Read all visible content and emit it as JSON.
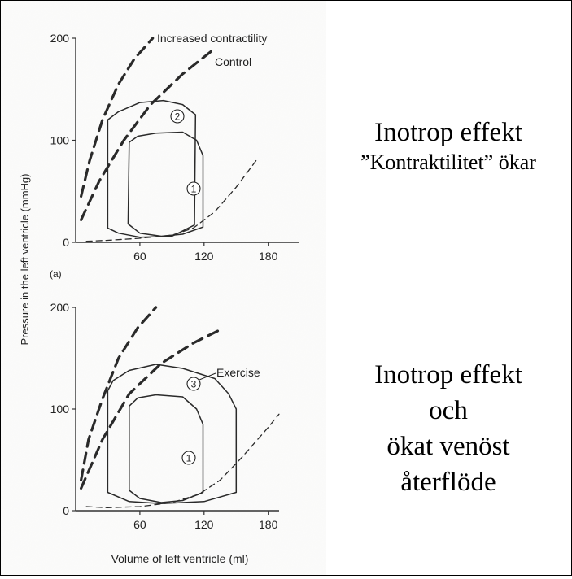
{
  "captions": {
    "top_line1": "Inotrop effekt",
    "top_line2": "”Kontraktilitet” ökar",
    "bottom_line1": "Inotrop effekt",
    "bottom_line2": "och",
    "bottom_line3": "ökat venöst",
    "bottom_line4": "återflöde"
  },
  "shared_labels": {
    "ylabel": "Pressure in the left ventricle (mmHg)",
    "xlabel": "Volume of left ventricle (ml)"
  },
  "colors": {
    "curves": "#2a2a2a",
    "axes": "#333333",
    "background": "#ffffff"
  },
  "chart_data": [
    {
      "type": "line",
      "panel_label": "(a)",
      "xlim": [
        0,
        200
      ],
      "ylim": [
        0,
        200
      ],
      "xticks": [
        60,
        120,
        180
      ],
      "yticks": [
        0,
        100,
        200
      ],
      "annotations": [
        {
          "text": "Increased contractility"
        },
        {
          "text": "Control"
        },
        {
          "text": "2"
        },
        {
          "text": "1"
        }
      ],
      "series": [
        {
          "id": "esp-increased",
          "style": "dashed-heavy",
          "points": [
            [
              5,
              45
            ],
            [
              13,
              80
            ],
            [
              25,
              120
            ],
            [
              40,
              155
            ],
            [
              55,
              180
            ],
            [
              72,
              200
            ]
          ]
        },
        {
          "id": "esp-control",
          "style": "dashed-heavy",
          "points": [
            [
              5,
              22
            ],
            [
              22,
              60
            ],
            [
              45,
              100
            ],
            [
              70,
              135
            ],
            [
              100,
              165
            ],
            [
              130,
              190
            ]
          ]
        },
        {
          "id": "edpv",
          "style": "dashed-light",
          "points": [
            [
              10,
              1
            ],
            [
              30,
              2
            ],
            [
              60,
              4
            ],
            [
              90,
              7
            ],
            [
              110,
              14
            ],
            [
              130,
              30
            ],
            [
              150,
              54
            ],
            [
              170,
              82
            ]
          ]
        },
        {
          "id": "loop-2",
          "style": "solid",
          "points": [
            [
              111,
              17
            ],
            [
              112,
              125
            ],
            [
              100,
              135
            ],
            [
              82,
              139
            ],
            [
              60,
              137
            ],
            [
              40,
              128
            ],
            [
              30,
              120
            ],
            [
              30,
              14
            ],
            [
              40,
              9
            ],
            [
              60,
              5
            ],
            [
              90,
              6
            ],
            [
              111,
              17
            ]
          ]
        },
        {
          "id": "loop-1",
          "style": "solid",
          "points": [
            [
              119,
              15
            ],
            [
              119,
              85
            ],
            [
              113,
              100
            ],
            [
              100,
              108
            ],
            [
              75,
              107
            ],
            [
              58,
              104
            ],
            [
              50,
              98
            ],
            [
              49,
              18
            ],
            [
              60,
              9
            ],
            [
              80,
              6
            ],
            [
              100,
              8
            ],
            [
              119,
              15
            ]
          ]
        }
      ]
    },
    {
      "type": "line",
      "panel_label": "",
      "xlim": [
        0,
        200
      ],
      "ylim": [
        0,
        200
      ],
      "xticks": [
        60,
        120,
        180
      ],
      "yticks": [
        0,
        100,
        200
      ],
      "annotations": [
        {
          "text": "Exercise"
        },
        {
          "text": "3"
        },
        {
          "text": "1"
        }
      ],
      "series": [
        {
          "id": "esp-increased",
          "style": "dashed-heavy",
          "points": [
            [
              5,
              30
            ],
            [
              12,
              70
            ],
            [
              25,
              110
            ],
            [
              40,
              150
            ],
            [
              58,
              180
            ],
            [
              75,
              200
            ]
          ]
        },
        {
          "id": "esp-control",
          "style": "dashed-heavy",
          "points": [
            [
              5,
              22
            ],
            [
              25,
              70
            ],
            [
              50,
              115
            ],
            [
              80,
              145
            ],
            [
              110,
              165
            ],
            [
              135,
              178
            ]
          ]
        },
        {
          "id": "edpv",
          "style": "dashed-light",
          "points": [
            [
              10,
              4
            ],
            [
              30,
              3
            ],
            [
              60,
              4
            ],
            [
              90,
              8
            ],
            [
              115,
              16
            ],
            [
              135,
              30
            ],
            [
              155,
              52
            ],
            [
              180,
              82
            ],
            [
              190,
              95
            ]
          ]
        },
        {
          "id": "loop-3",
          "style": "solid",
          "points": [
            [
              150,
              18
            ],
            [
              150,
              100
            ],
            [
              143,
              115
            ],
            [
              130,
              130
            ],
            [
              100,
              140
            ],
            [
              75,
              144
            ],
            [
              50,
              138
            ],
            [
              35,
              128
            ],
            [
              30,
              118
            ],
            [
              30,
              18
            ],
            [
              50,
              9
            ],
            [
              80,
              7
            ],
            [
              120,
              9
            ],
            [
              150,
              18
            ]
          ]
        },
        {
          "id": "loop-1",
          "style": "solid",
          "points": [
            [
              119,
              18
            ],
            [
              119,
              85
            ],
            [
              113,
              100
            ],
            [
              100,
              112
            ],
            [
              75,
              114
            ],
            [
              58,
              111
            ],
            [
              50,
              103
            ],
            [
              50,
              20
            ],
            [
              60,
              12
            ],
            [
              80,
              8
            ],
            [
              100,
              10
            ],
            [
              119,
              18
            ]
          ]
        }
      ]
    }
  ]
}
